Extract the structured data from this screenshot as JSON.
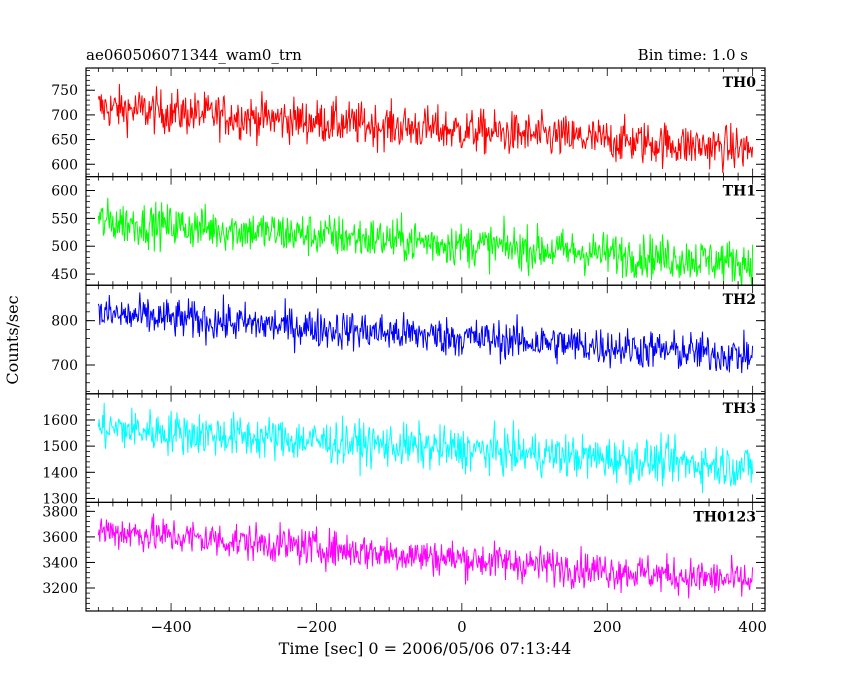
{
  "header": {
    "title": "ae060506071344_wam0_trn",
    "bin_time": "Bin time: 1.0 s"
  },
  "chart_data": {
    "type": "line",
    "xlabel": "Time [sec] 0 = 2006/05/06 07:13:44",
    "ylabel": "Counts/sec",
    "xlim": [
      -517,
      417
    ],
    "xticks": [
      -400,
      -200,
      0,
      200,
      400
    ],
    "x_range": [
      -500,
      400
    ],
    "grid": false,
    "panels": [
      {
        "name": "TH0",
        "color": "#ff0000",
        "ylim": [
          575,
          795
        ],
        "yticks": [
          600,
          650,
          700,
          750
        ],
        "trend_start": 715,
        "trend_end": 630,
        "noise_amplitude": 40
      },
      {
        "name": "TH1",
        "color": "#00ff00",
        "ylim": [
          430,
          625
        ],
        "yticks": [
          450,
          500,
          550,
          600
        ],
        "trend_start": 545,
        "trend_end": 470,
        "noise_amplitude": 35
      },
      {
        "name": "TH2",
        "color": "#0000ff",
        "ylim": [
          635,
          880
        ],
        "yticks": [
          700,
          800
        ],
        "trend_start": 815,
        "trend_end": 720,
        "noise_amplitude": 40
      },
      {
        "name": "TH3",
        "color": "#00ffff",
        "ylim": [
          1285,
          1700
        ],
        "yticks": [
          1300,
          1400,
          1500,
          1600
        ],
        "trend_start": 1570,
        "trend_end": 1420,
        "noise_amplitude": 75
      },
      {
        "name": "TH0123",
        "color": "#ff00ff",
        "ylim": [
          3020,
          3870
        ],
        "yticks": [
          3200,
          3400,
          3600,
          3800
        ],
        "trend_start": 3650,
        "trend_end": 3250,
        "noise_amplitude": 130
      }
    ]
  }
}
